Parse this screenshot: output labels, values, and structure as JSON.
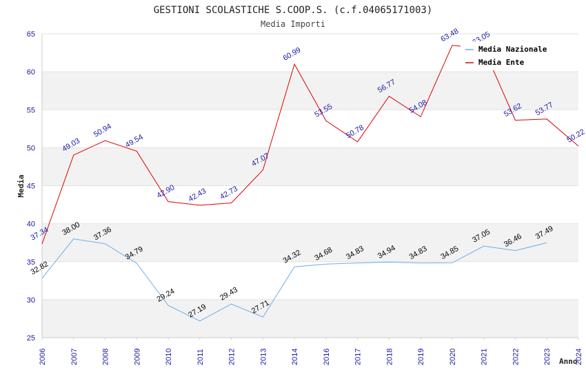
{
  "chart_data": {
    "type": "line",
    "title": "GESTIONI SCOLASTICHE S.COOP.S. (c.f.04065171003)",
    "subtitle": "Media Importi",
    "xlabel": "Anno",
    "ylabel": "Media",
    "ylim": [
      25,
      65
    ],
    "yticks": [
      "25",
      "30",
      "35",
      "40",
      "45",
      "50",
      "55",
      "60",
      "65"
    ],
    "categories": [
      "2006",
      "2007",
      "2008",
      "2009",
      "2010",
      "2011",
      "2012",
      "2013",
      "2014",
      "2016",
      "2017",
      "2018",
      "2019",
      "2020",
      "2021",
      "2022",
      "2023",
      "2024"
    ],
    "grid": true,
    "legend_position": "top-right",
    "series": [
      {
        "name": "Media Nazionale",
        "color": "#6aaee8",
        "values": [
          32.82,
          38.0,
          37.36,
          34.79,
          29.24,
          27.19,
          29.43,
          27.71,
          34.32,
          34.68,
          34.83,
          34.94,
          34.83,
          34.85,
          37.05,
          36.46,
          37.49,
          null
        ],
        "labels": [
          "32.82",
          "38.00",
          "37.36",
          "34.79",
          "29.24",
          "27.19",
          "29.43",
          "27.71",
          "34.32",
          "34.68",
          "34.83",
          "34.94",
          "34.83",
          "34.85",
          "37.05",
          "36.46",
          "37.49",
          ""
        ]
      },
      {
        "name": "Media Ente",
        "color": "#dd0000",
        "values": [
          37.34,
          49.03,
          50.94,
          49.54,
          42.9,
          42.43,
          42.73,
          47.07,
          60.99,
          53.55,
          50.78,
          56.77,
          54.08,
          63.48,
          63.05,
          53.62,
          53.77,
          50.22
        ],
        "labels": [
          "37.34",
          "49.03",
          "50.94",
          "49.54",
          "42.90",
          "42.43",
          "42.73",
          "47.07",
          "60.99",
          "53.55",
          "50.78",
          "56.77",
          "54.08",
          "63.48",
          "63.05",
          "53.62",
          "53.77",
          "50.22"
        ]
      }
    ]
  }
}
